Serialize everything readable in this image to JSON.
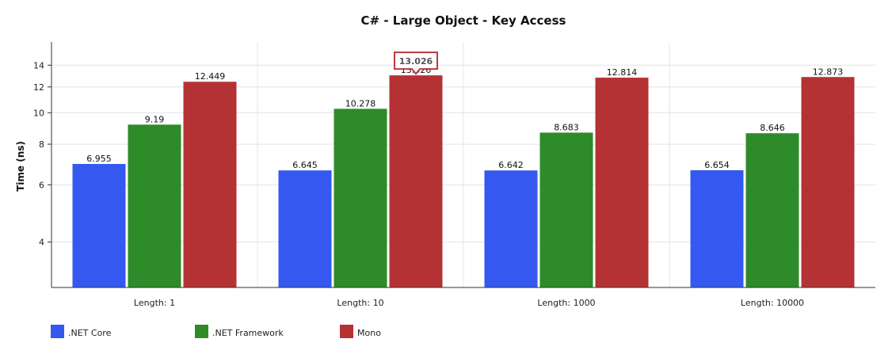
{
  "chart_data": {
    "type": "bar",
    "title": "C# - Large Object -  Key Access",
    "ylabel": "Time (ns)",
    "xlabel": "",
    "yscale": "log",
    "ylim": [
      2.9,
      16.5
    ],
    "yticks": [
      4,
      6,
      8,
      10,
      12,
      14
    ],
    "grid": true,
    "legend_position": "bottom-left",
    "categories": [
      "Length: 1",
      "Length: 10",
      "Length: 1000",
      "Length: 10000"
    ],
    "series": [
      {
        "name": ".NET Core",
        "color": "#3558f0",
        "values": [
          6.955,
          6.645,
          6.642,
          6.654
        ]
      },
      {
        "name": ".NET Framework",
        "color": "#2e8b2a",
        "values": [
          9.19,
          10.278,
          8.683,
          8.646
        ]
      },
      {
        "name": "Mono",
        "color": "#b53234",
        "values": [
          12.449,
          13.026,
          12.814,
          12.873
        ]
      }
    ],
    "tooltip": {
      "series_index": 2,
      "category_index": 1,
      "text": "13.026",
      "border_color": "#b53234"
    }
  }
}
